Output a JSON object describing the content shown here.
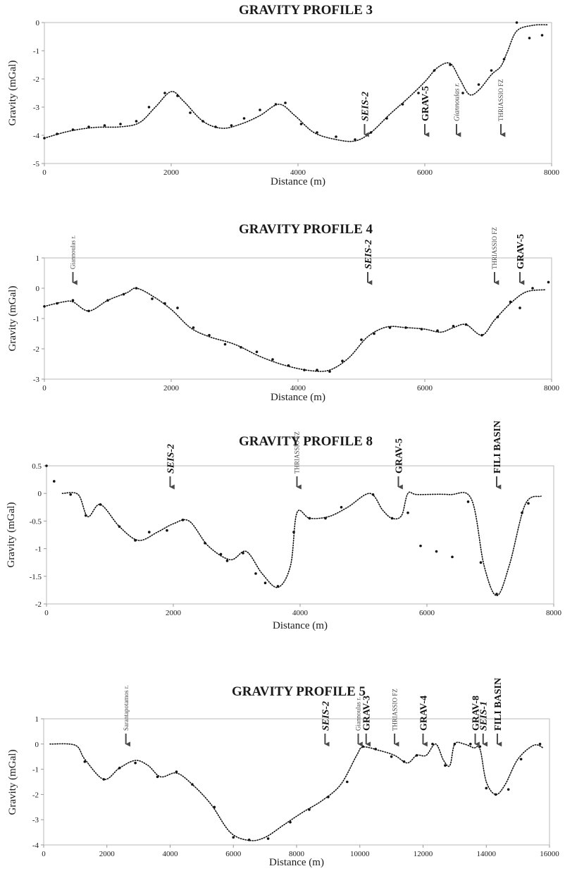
{
  "chart_data": [
    {
      "type": "scatter",
      "title": "GRAVITY PROFILE 3",
      "xlabel": "Distance (m)",
      "ylabel": "Gravity (mGal)",
      "xlim": [
        0,
        8000
      ],
      "ylim": [
        -5,
        0
      ],
      "xticks": [
        0,
        2000,
        4000,
        6000,
        8000
      ],
      "yticks": [
        -5,
        -4,
        -3,
        -2,
        -1,
        0
      ],
      "series": [
        {
          "role": "observed",
          "x": [
            0,
            200,
            450,
            700,
            950,
            1200,
            1450,
            1650,
            1900,
            2100,
            2300,
            2500,
            2700,
            2950,
            3150,
            3400,
            3650,
            3800,
            4050,
            4300,
            4600,
            4900,
            5150,
            5400,
            5650,
            5900,
            6150,
            6400,
            6600,
            6850,
            7050,
            7250,
            7450,
            7650,
            7850
          ],
          "y": [
            -4.1,
            -3.95,
            -3.8,
            -3.7,
            -3.65,
            -3.6,
            -3.5,
            -3.0,
            -2.5,
            -2.6,
            -3.2,
            -3.5,
            -3.7,
            -3.65,
            -3.4,
            -3.1,
            -2.9,
            -2.85,
            -3.6,
            -3.9,
            -4.05,
            -4.15,
            -3.9,
            -3.4,
            -2.9,
            -2.5,
            -1.7,
            -1.5,
            -2.5,
            -2.2,
            -1.7,
            -1.3,
            0.0,
            -0.55,
            -0.45
          ]
        },
        {
          "role": "calculated",
          "x": [
            0,
            400,
            800,
            1200,
            1500,
            1750,
            2000,
            2200,
            2500,
            2800,
            3100,
            3400,
            3700,
            3950,
            4250,
            4600,
            4900,
            5150,
            5450,
            5750,
            6000,
            6200,
            6400,
            6550,
            6700,
            6850,
            7050,
            7200,
            7300,
            7450,
            7700,
            7950
          ],
          "y": [
            -4.1,
            -3.85,
            -3.72,
            -3.7,
            -3.55,
            -3.0,
            -2.45,
            -2.8,
            -3.5,
            -3.75,
            -3.6,
            -3.3,
            -2.9,
            -3.3,
            -3.9,
            -4.15,
            -4.2,
            -3.9,
            -3.25,
            -2.65,
            -2.1,
            -1.6,
            -1.45,
            -2.0,
            -2.55,
            -2.4,
            -1.85,
            -1.55,
            -1.05,
            -0.3,
            -0.1,
            -0.08
          ]
        }
      ],
      "annotations": [
        {
          "text": "SEIS-2",
          "x": 5050,
          "style": "major-it",
          "size": 14
        },
        {
          "text": "GRAV-5",
          "x": 6000,
          "style": "major",
          "size": 14
        },
        {
          "text": "Giannoulas r.",
          "x": 6500,
          "style": "minor-it",
          "size": 10
        },
        {
          "text": "THRIASSIO FZ",
          "x": 7200,
          "style": "minor",
          "size": 9
        }
      ]
    },
    {
      "type": "scatter",
      "title": "GRAVITY PROFILE 4",
      "xlabel": "Distance (m)",
      "ylabel": "Gravity (mGal)",
      "xlim": [
        0,
        8000
      ],
      "ylim": [
        -3,
        1
      ],
      "xticks": [
        0,
        2000,
        4000,
        6000,
        8000
      ],
      "yticks": [
        -3,
        -2,
        -1,
        0,
        1
      ],
      "series": [
        {
          "role": "observed",
          "x": [
            0,
            200,
            450,
            700,
            1000,
            1250,
            1450,
            1700,
            1900,
            2100,
            2350,
            2600,
            2850,
            3100,
            3350,
            3600,
            3850,
            4100,
            4300,
            4500,
            4700,
            5000,
            5200,
            5450,
            5700,
            5950,
            6200,
            6450,
            6650,
            6900,
            7150,
            7350,
            7500,
            7700,
            7950
          ],
          "y": [
            -0.6,
            -0.5,
            -0.4,
            -0.75,
            -0.4,
            -0.2,
            0.0,
            -0.35,
            -0.5,
            -0.65,
            -1.3,
            -1.55,
            -1.85,
            -1.95,
            -2.1,
            -2.35,
            -2.55,
            -2.7,
            -2.7,
            -2.75,
            -2.4,
            -1.7,
            -1.5,
            -1.3,
            -1.3,
            -1.35,
            -1.4,
            -1.25,
            -1.2,
            -1.55,
            -0.95,
            -0.45,
            -0.65,
            0.0,
            0.2
          ]
        },
        {
          "role": "calculated",
          "x": [
            0,
            300,
            450,
            700,
            1000,
            1300,
            1450,
            1700,
            2000,
            2300,
            2600,
            3000,
            3400,
            3800,
            4200,
            4500,
            4800,
            5100,
            5400,
            5700,
            6000,
            6250,
            6450,
            6650,
            6900,
            7100,
            7350,
            7600,
            7900
          ],
          "y": [
            -0.6,
            -0.45,
            -0.45,
            -0.75,
            -0.4,
            -0.15,
            0.0,
            -0.25,
            -0.7,
            -1.3,
            -1.6,
            -1.85,
            -2.25,
            -2.55,
            -2.72,
            -2.7,
            -2.3,
            -1.6,
            -1.28,
            -1.3,
            -1.35,
            -1.45,
            -1.3,
            -1.2,
            -1.55,
            -1.05,
            -0.5,
            -0.12,
            -0.05
          ]
        }
      ],
      "annotations": [
        {
          "text": "Giannoulas r.",
          "x": 450,
          "style": "minor",
          "size": 9
        },
        {
          "text": "SEIS-2",
          "x": 5100,
          "style": "major-it",
          "size": 14
        },
        {
          "text": "THRIASSIO FZ",
          "x": 7100,
          "style": "minor",
          "size": 9
        },
        {
          "text": "GRAV-5",
          "x": 7500,
          "style": "major",
          "size": 14
        }
      ]
    },
    {
      "type": "scatter",
      "title": "GRAVITY PROFILE 8",
      "xlabel": "Distance (m)",
      "ylabel": "Gravity (mGal)",
      "xlim": [
        0,
        8000
      ],
      "ylim": [
        -2,
        0.5
      ],
      "xticks": [
        0,
        2000,
        4000,
        6000,
        8000
      ],
      "yticks": [
        -2,
        -1.5,
        -1,
        -0.5,
        0,
        0.5
      ],
      "series": [
        {
          "role": "observed",
          "x": [
            0,
            120,
            380,
            620,
            850,
            1150,
            1400,
            1620,
            1900,
            2150,
            2500,
            2750,
            2850,
            3100,
            3300,
            3450,
            3650,
            3900,
            4150,
            4400,
            4650,
            5150,
            5450,
            5700,
            5900,
            6150,
            6400,
            6650,
            6850,
            7100,
            7500,
            7600
          ],
          "y": [
            0.5,
            0.22,
            -0.02,
            -0.4,
            -0.2,
            -0.6,
            -0.85,
            -0.7,
            -0.67,
            -0.48,
            -0.9,
            -1.1,
            -1.22,
            -1.08,
            -1.45,
            -1.62,
            -1.68,
            -0.7,
            -0.45,
            -0.45,
            -0.25,
            -0.02,
            -0.45,
            -0.35,
            -0.95,
            -1.05,
            -1.15,
            -0.15,
            -1.25,
            -1.82,
            -0.35,
            -0.18
          ]
        },
        {
          "role": "calculated",
          "x": [
            250,
            500,
            650,
            850,
            1150,
            1450,
            1750,
            2000,
            2250,
            2550,
            2900,
            3150,
            3400,
            3650,
            3850,
            3950,
            4150,
            4450,
            4750,
            5100,
            5300,
            5450,
            5600,
            5700,
            5850,
            6350,
            6700,
            6900,
            7100,
            7300,
            7550,
            7800
          ],
          "y": [
            0.0,
            -0.02,
            -0.42,
            -0.2,
            -0.6,
            -0.85,
            -0.7,
            -0.55,
            -0.5,
            -0.95,
            -1.2,
            -1.05,
            -1.45,
            -1.7,
            -1.3,
            -0.35,
            -0.45,
            -0.42,
            -0.25,
            0.0,
            -0.3,
            -0.45,
            -0.4,
            0.0,
            -0.02,
            -0.02,
            -0.1,
            -1.3,
            -1.85,
            -1.3,
            -0.2,
            -0.05
          ]
        }
      ],
      "annotations": [
        {
          "text": "SEIS-2",
          "x": 1950,
          "style": "major-it",
          "size": 14
        },
        {
          "text": "THRIASSIO FZ",
          "x": 3950,
          "style": "minor",
          "size": 9
        },
        {
          "text": "GRAV-5",
          "x": 5550,
          "style": "major",
          "size": 14
        },
        {
          "text": "FILI BASIN",
          "x": 7100,
          "style": "major",
          "size": 14
        }
      ]
    },
    {
      "type": "scatter",
      "title": "GRAVITY PROFILE 5",
      "xlabel": "Distance (m)",
      "ylabel": "Gravity (mGal)",
      "xlim": [
        0,
        16000
      ],
      "ylim": [
        -4,
        1
      ],
      "xticks": [
        0,
        2000,
        4000,
        6000,
        8000,
        10000,
        12000,
        14000,
        16000
      ],
      "yticks": [
        -4,
        -3,
        -2,
        -1,
        0,
        1
      ],
      "series": [
        {
          "role": "observed",
          "x": [
            1300,
            1900,
            2400,
            2900,
            3600,
            4200,
            4700,
            5400,
            6000,
            6500,
            7100,
            7800,
            8400,
            9000,
            9600,
            10100,
            10500,
            11000,
            11400,
            11800,
            12300,
            12700,
            13000,
            13500,
            13800,
            14000,
            14300,
            14700,
            15100,
            15700
          ],
          "y": [
            -0.7,
            -1.4,
            -0.95,
            -0.75,
            -1.3,
            -1.1,
            -1.6,
            -2.5,
            -3.7,
            -3.8,
            -3.75,
            -3.1,
            -2.6,
            -2.1,
            -1.5,
            -0.1,
            -0.2,
            -0.5,
            -0.7,
            -0.45,
            0.0,
            -0.85,
            0.0,
            0.0,
            -0.1,
            -1.75,
            -2.0,
            -1.8,
            -0.6,
            0.0
          ]
        },
        {
          "role": "calculated",
          "x": [
            200,
            1000,
            1300,
            1900,
            2400,
            2900,
            3300,
            3700,
            4200,
            4700,
            5300,
            5900,
            6500,
            7000,
            7600,
            8200,
            8800,
            9400,
            9900,
            10100,
            10600,
            11100,
            11500,
            11800,
            12100,
            12400,
            12650,
            12850,
            13000,
            13300,
            13600,
            13800,
            14000,
            14300,
            14600,
            15000,
            15500,
            15800
          ],
          "y": [
            0.0,
            -0.05,
            -0.6,
            -1.4,
            -0.95,
            -0.65,
            -0.85,
            -1.3,
            -1.15,
            -1.6,
            -2.4,
            -3.5,
            -3.82,
            -3.7,
            -3.2,
            -2.7,
            -2.25,
            -1.6,
            -0.45,
            -0.12,
            -0.25,
            -0.45,
            -0.75,
            -0.45,
            -0.45,
            0.0,
            -0.65,
            -0.85,
            0.0,
            0.0,
            -0.15,
            -0.2,
            -1.5,
            -2.0,
            -1.6,
            -0.6,
            -0.05,
            -0.15
          ]
        }
      ],
      "annotations": [
        {
          "text": "Sarantapotamos r.",
          "x": 2600,
          "style": "minor",
          "size": 9
        },
        {
          "text": "SEIS-2",
          "x": 8900,
          "style": "major-it",
          "size": 14
        },
        {
          "text": "Giannoulas r.",
          "x": 9950,
          "style": "minor",
          "size": 9
        },
        {
          "text": "GRAV-3",
          "x": 10200,
          "style": "major",
          "size": 14
        },
        {
          "text": "THRIASSIO FZ",
          "x": 11100,
          "style": "minor",
          "size": 9
        },
        {
          "text": "GRAV-4",
          "x": 12000,
          "style": "major",
          "size": 14
        },
        {
          "text": "GRAV-8",
          "x": 13650,
          "style": "major",
          "size": 14
        },
        {
          "text": "SEIS-1",
          "x": 13900,
          "style": "major-it",
          "size": 14
        },
        {
          "text": "FILI BASIN",
          "x": 14350,
          "style": "major",
          "size": 14
        }
      ]
    }
  ]
}
